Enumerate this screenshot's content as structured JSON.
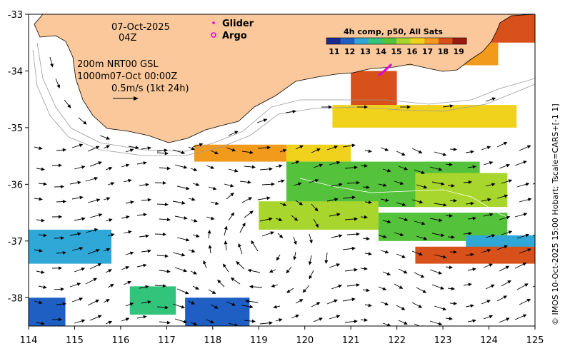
{
  "chart_data": {
    "type": "heatmap",
    "title": "",
    "xlabel": "",
    "ylabel": "",
    "x_ticks": [
      "114",
      "115",
      "116",
      "117",
      "118",
      "119",
      "120",
      "121",
      "122",
      "123",
      "124",
      "125"
    ],
    "y_ticks": [
      "-33",
      "-34",
      "-35",
      "-36",
      "-37",
      "-38"
    ],
    "xlim": [
      114,
      125
    ],
    "ylim": [
      -38.5,
      -33
    ],
    "date_line": "07-Oct-2025",
    "time_line": "04Z",
    "depth_line_1": "200m  NRT00 GSL",
    "depth_line_2": "1000m07-Oct 00:00Z",
    "scale_text": "0.5m/s (1kt 24h)",
    "legend": {
      "glider_label": "Glider",
      "argo_label": "Argo",
      "glider_color": "#e000e0",
      "argo_color": "#e000e0"
    },
    "colorbar": {
      "title": "4h comp, p50, All Sats",
      "ticks": [
        "11",
        "12",
        "13",
        "14",
        "15",
        "16",
        "17",
        "18",
        "19"
      ],
      "min": 10.5,
      "max": 19.5,
      "colors": [
        "#1b2a8e",
        "#1f5fc4",
        "#2fa8d8",
        "#33c47c",
        "#55c23c",
        "#a8d62c",
        "#f0d21c",
        "#f29a1c",
        "#d8501a",
        "#9a1a10"
      ]
    },
    "credit": "© IMOS 10-Oct-2025 15:00 Hobart; Tscale=CARS+[-1 1]",
    "land_color": "#fac89a",
    "sst_patches": [
      {
        "lon": [
          120.6,
          124.6
        ],
        "lat": [
          -35.0,
          -34.6
        ],
        "sst": 16.5
      },
      {
        "lon": [
          122.0,
          124.2
        ],
        "lat": [
          -33.9,
          -33.5
        ],
        "sst": 17.2
      },
      {
        "lon": [
          123.8,
          125.0
        ],
        "lat": [
          -33.5,
          -33.0
        ],
        "sst": 18.3
      },
      {
        "lon": [
          121.0,
          122.0
        ],
        "lat": [
          -34.6,
          -34.0
        ],
        "sst": 17.8
      },
      {
        "lon": [
          117.6,
          119.6
        ],
        "lat": [
          -35.6,
          -35.3
        ],
        "sst": 16.8
      },
      {
        "lon": [
          119.6,
          121.0
        ],
        "lat": [
          -35.6,
          -35.3
        ],
        "sst": 16.0
      },
      {
        "lon": [
          119.6,
          123.8
        ],
        "lat": [
          -36.4,
          -35.6
        ],
        "sst": 14.6
      },
      {
        "lon": [
          122.4,
          124.4
        ],
        "lat": [
          -36.4,
          -35.8
        ],
        "sst": 15.2
      },
      {
        "lon": [
          119.0,
          121.6
        ],
        "lat": [
          -36.8,
          -36.3
        ],
        "sst": 15.6
      },
      {
        "lon": [
          121.6,
          124.4
        ],
        "lat": [
          -37.0,
          -36.5
        ],
        "sst": 14.4
      },
      {
        "lon": [
          123.5,
          125.0
        ],
        "lat": [
          -37.3,
          -36.9
        ],
        "sst": 13.0
      },
      {
        "lon": [
          122.4,
          125.0
        ],
        "lat": [
          -37.4,
          -37.1
        ],
        "sst": 17.9
      },
      {
        "lon": [
          114.0,
          115.8
        ],
        "lat": [
          -37.4,
          -36.8
        ],
        "sst": 13.0
      },
      {
        "lon": [
          114.0,
          114.8
        ],
        "lat": [
          -38.5,
          -38.0
        ],
        "sst": 11.4
      },
      {
        "lon": [
          116.2,
          117.2
        ],
        "lat": [
          -38.3,
          -37.8
        ],
        "sst": 14.0
      },
      {
        "lon": [
          117.4,
          118.8
        ],
        "lat": [
          -38.5,
          -38.0
        ],
        "sst": 12.2
      }
    ]
  }
}
